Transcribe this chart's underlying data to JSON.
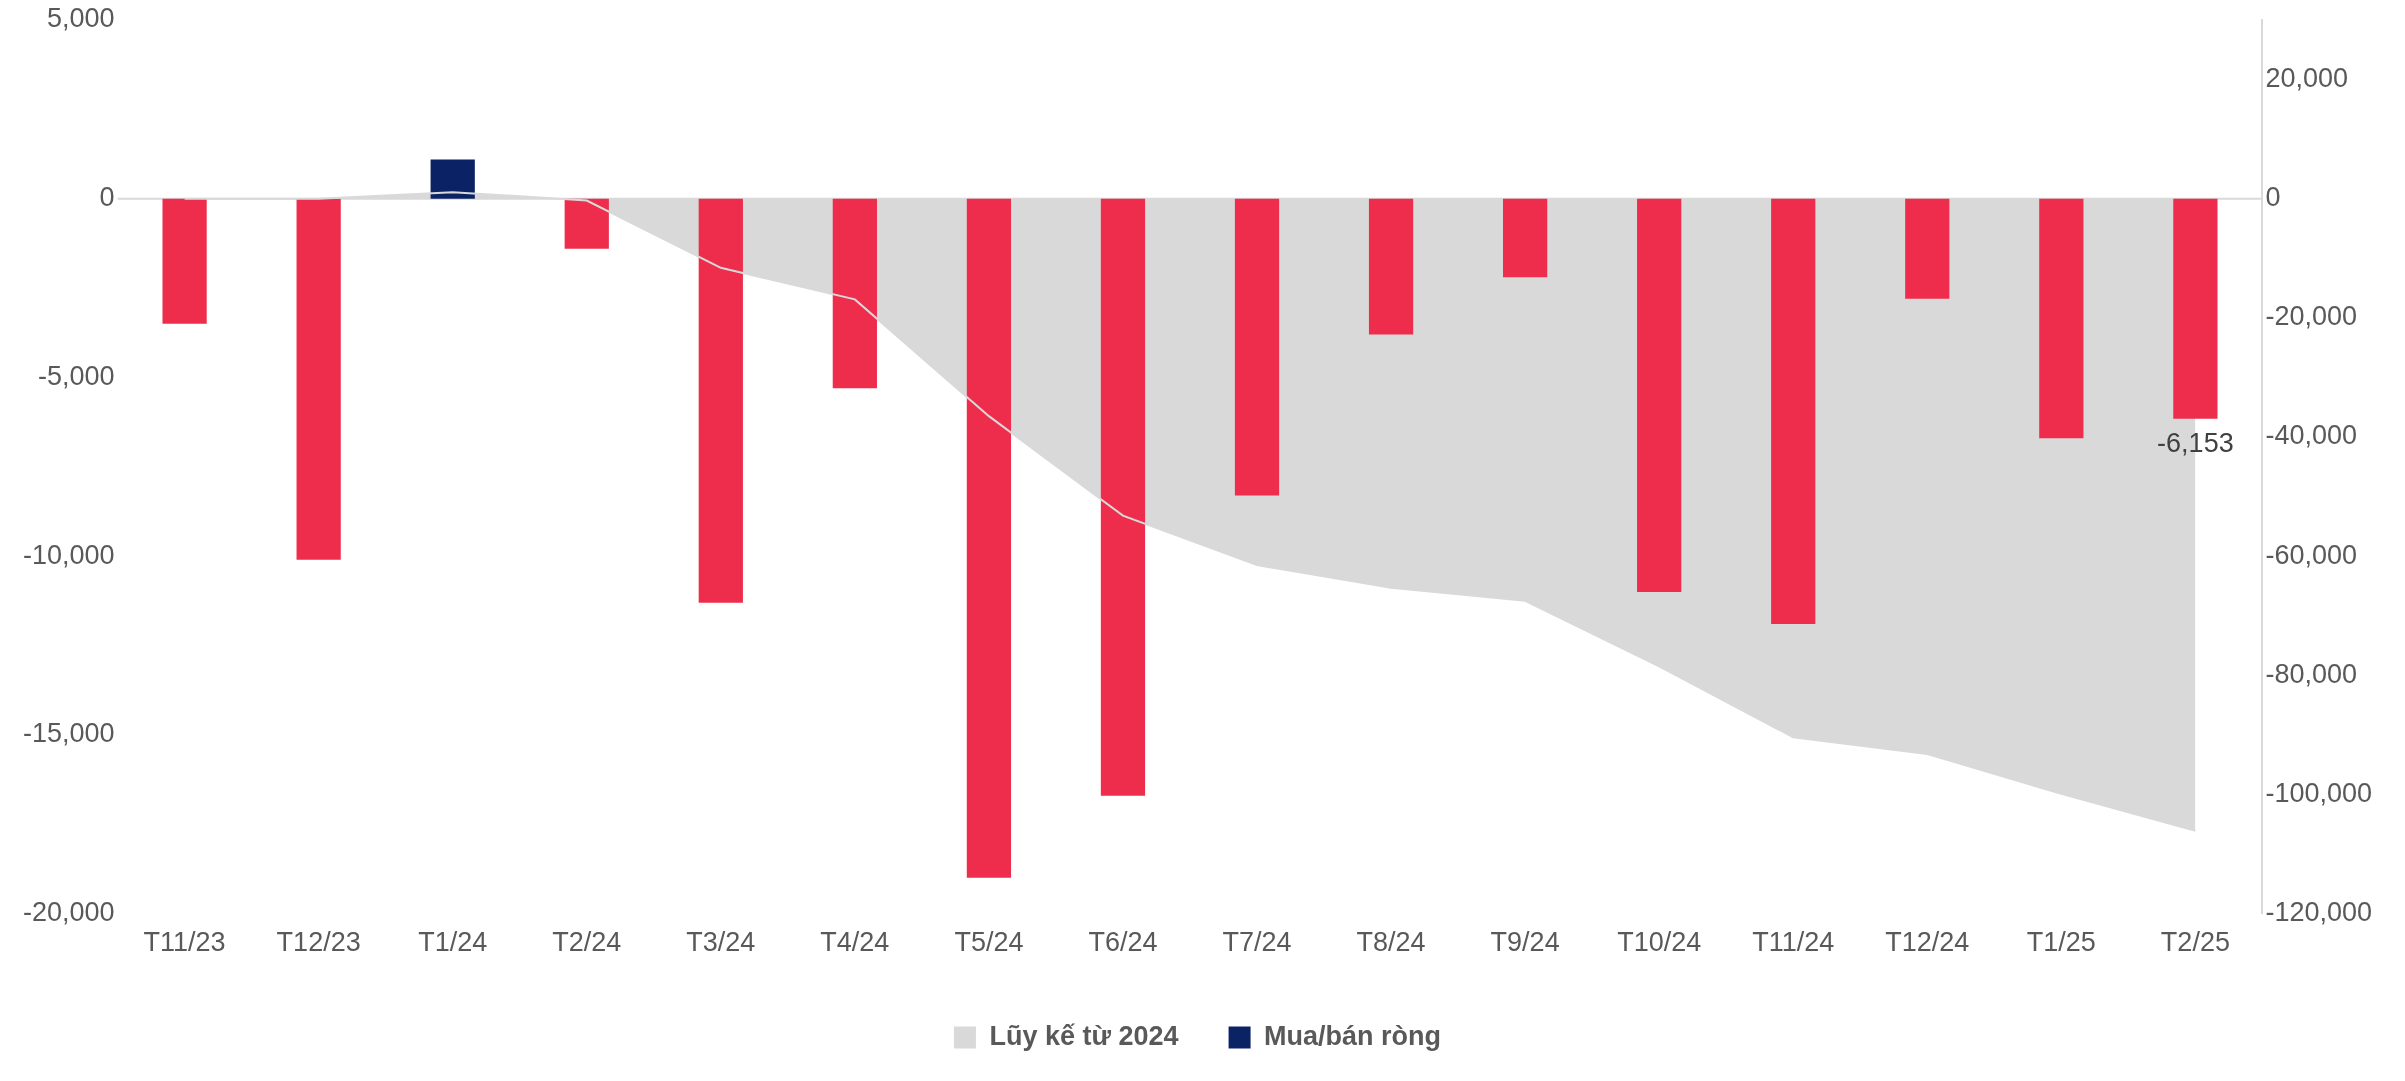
{
  "chart_data": {
    "type": "bar",
    "categories": [
      "T11/23",
      "T12/23",
      "T1/24",
      "T2/24",
      "T3/24",
      "T4/24",
      "T5/24",
      "T6/24",
      "T7/24",
      "T8/24",
      "T9/24",
      "T10/24",
      "T11/24",
      "T12/24",
      "T1/25",
      "T2/25"
    ],
    "series": [
      {
        "name": "Lũy kế từ 2024",
        "type": "area",
        "axis": "y2",
        "color": "#d9d9d9",
        "values": [
          0,
          0,
          1100,
          -300,
          -11600,
          -16900,
          -36500,
          -53200,
          -61500,
          -65300,
          -67500,
          -78500,
          -90400,
          -93200,
          -99900,
          -106100
        ]
      },
      {
        "name": "Mua/bán ròng",
        "color": "#0b2265",
        "colors": [
          "#ed2d4b",
          "#ed2d4b",
          "#0b2265",
          "#ed2d4b",
          "#ed2d4b",
          "#ed2d4b",
          "#ed2d4b",
          "#ed2d4b",
          "#ed2d4b",
          "#ed2d4b",
          "#ed2d4b",
          "#ed2d4b",
          "#ed2d4b",
          "#ed2d4b",
          "#ed2d4b",
          "#ed2d4b"
        ],
        "values": [
          -3500,
          -10100,
          1100,
          -1400,
          -11300,
          -5300,
          -19000,
          -16700,
          -8300,
          -3800,
          -2200,
          -11000,
          -11900,
          -2800,
          -6700,
          -6153
        ],
        "value_labels": [
          null,
          null,
          null,
          null,
          null,
          null,
          null,
          null,
          null,
          null,
          null,
          null,
          null,
          null,
          null,
          "-6,153"
        ]
      }
    ],
    "ylim": [
      -20000,
      5000
    ],
    "yticks": [
      {
        "value": -20000,
        "label": "-20,000"
      },
      {
        "value": -15000,
        "label": "-15,000"
      },
      {
        "value": -10000,
        "label": "-10,000"
      },
      {
        "value": -5000,
        "label": "-5,000"
      },
      0,
      {
        "value": 5000,
        "label": "5,000"
      }
    ],
    "y2lim": [
      -120000,
      30000
    ],
    "y2ticks": [
      {
        "value": -120000,
        "label": "-120,000"
      },
      {
        "value": -100000,
        "label": "-100,000"
      },
      {
        "value": -80000,
        "label": "-80,000"
      },
      {
        "value": -60000,
        "label": "-60,000"
      },
      {
        "value": -40000,
        "label": "-40,000"
      },
      {
        "value": -20000,
        "label": "-20,000"
      },
      0,
      {
        "value": 20000,
        "label": "20,000"
      }
    ],
    "ref_lines": [
      {
        "axis": "y",
        "value": 0,
        "color": "#d9d9d9"
      }
    ],
    "grid": false,
    "legend": "bottom"
  }
}
